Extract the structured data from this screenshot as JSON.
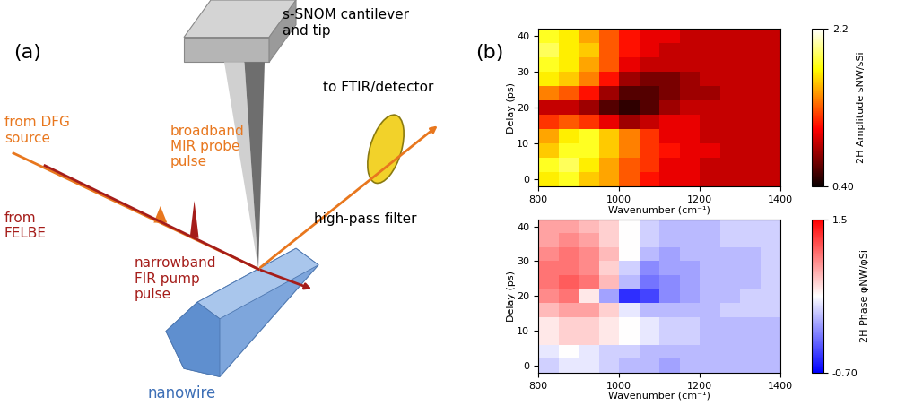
{
  "panel_labels": [
    "(a)",
    "(b)"
  ],
  "diagram": {
    "labels": {
      "cantilever": "s-SNOM cantilever\nand tip",
      "dfg": "from DFG\nsource",
      "probe": "broadband\nMIR probe\npulse",
      "felbe": "from\nFELBE",
      "pump": "narrowband\nFIR pump\npulse",
      "nanowire": "nanowire",
      "filter": "high-pass filter",
      "detector": "to FTIR/detector"
    }
  },
  "chart_data": [
    {
      "type": "heatmap",
      "xlabel": "Wavenumber (cm⁻¹)",
      "ylabel": "Delay (ps)",
      "xlim": [
        800,
        1400
      ],
      "xticks": [
        800,
        1000,
        1200,
        1400
      ],
      "ylim": [
        -2,
        42
      ],
      "yticks": [
        0,
        10,
        20,
        30,
        40
      ],
      "x_edges": [
        800,
        850,
        900,
        950,
        1000,
        1050,
        1100,
        1150,
        1200,
        1250,
        1300,
        1350,
        1400
      ],
      "y_edges": [
        -2,
        2,
        6,
        10,
        14,
        18,
        22,
        26,
        30,
        34,
        38,
        42
      ],
      "cells": [
        [
          1.7,
          1.8,
          1.6,
          1.5,
          1.3,
          1.1,
          1.0,
          1.0,
          0.9,
          0.9,
          0.9,
          0.9
        ],
        [
          1.8,
          1.9,
          1.7,
          1.5,
          1.3,
          1.2,
          1.0,
          1.0,
          0.9,
          0.9,
          0.9,
          0.9
        ],
        [
          1.6,
          1.8,
          1.8,
          1.6,
          1.4,
          1.2,
          1.1,
          1.0,
          1.0,
          0.9,
          0.9,
          0.9
        ],
        [
          1.5,
          1.7,
          1.8,
          1.6,
          1.4,
          1.2,
          1.0,
          1.0,
          0.9,
          0.9,
          0.9,
          0.9
        ],
        [
          1.2,
          1.3,
          1.2,
          1.0,
          0.8,
          0.9,
          1.0,
          1.0,
          0.9,
          0.9,
          0.9,
          0.9
        ],
        [
          0.9,
          0.9,
          0.8,
          0.6,
          0.5,
          0.6,
          0.8,
          0.9,
          0.9,
          0.9,
          0.9,
          0.9
        ],
        [
          1.4,
          1.3,
          1.1,
          0.8,
          0.6,
          0.6,
          0.7,
          0.8,
          0.8,
          0.9,
          0.9,
          0.9
        ],
        [
          1.7,
          1.6,
          1.4,
          1.1,
          0.8,
          0.7,
          0.7,
          0.8,
          0.9,
          0.9,
          0.9,
          0.9
        ],
        [
          1.8,
          1.7,
          1.5,
          1.3,
          1.0,
          0.9,
          0.9,
          0.9,
          0.9,
          0.9,
          0.9,
          0.9
        ],
        [
          1.9,
          1.7,
          1.6,
          1.3,
          1.1,
          1.0,
          0.9,
          0.9,
          0.9,
          0.9,
          0.9,
          0.9
        ],
        [
          1.8,
          1.7,
          1.5,
          1.3,
          1.1,
          1.0,
          1.0,
          0.9,
          0.9,
          0.9,
          0.9,
          0.9
        ]
      ],
      "colorbar": {
        "label": "2H Amplitude sNW/sSi",
        "range": [
          0.4,
          2.2
        ],
        "ticks": [
          {
            "value": 0.4,
            "label": "0.40"
          },
          2.2
        ]
      }
    },
    {
      "type": "heatmap",
      "xlabel": "Wavenumber (cm⁻¹)",
      "ylabel": "Delay (ps)",
      "xlim": [
        800,
        1400
      ],
      "xticks": [
        800,
        1000,
        1200,
        1400
      ],
      "ylim": [
        -2,
        42
      ],
      "yticks": [
        0,
        10,
        20,
        30,
        40
      ],
      "x_edges": [
        800,
        850,
        900,
        950,
        1000,
        1050,
        1100,
        1150,
        1200,
        1250,
        1300,
        1350,
        1400
      ],
      "y_edges": [
        -2,
        2,
        6,
        10,
        14,
        18,
        22,
        26,
        30,
        34,
        38,
        42
      ],
      "cells": [
        [
          0.2,
          0.3,
          0.3,
          0.2,
          0.1,
          0.1,
          0.0,
          0.1,
          0.1,
          0.1,
          0.1,
          0.1
        ],
        [
          0.3,
          0.4,
          0.3,
          0.2,
          0.2,
          0.1,
          0.1,
          0.1,
          0.1,
          0.1,
          0.1,
          0.1
        ],
        [
          0.5,
          0.6,
          0.6,
          0.5,
          0.4,
          0.3,
          0.2,
          0.2,
          0.1,
          0.1,
          0.1,
          0.1
        ],
        [
          0.5,
          0.6,
          0.6,
          0.5,
          0.4,
          0.3,
          0.2,
          0.2,
          0.1,
          0.1,
          0.1,
          0.1
        ],
        [
          0.7,
          0.8,
          0.8,
          0.6,
          0.3,
          0.1,
          0.1,
          0.1,
          0.1,
          0.2,
          0.2,
          0.2
        ],
        [
          0.9,
          1.0,
          0.5,
          0.0,
          -0.5,
          -0.4,
          -0.1,
          0.0,
          0.1,
          0.1,
          0.2,
          0.2
        ],
        [
          1.0,
          1.1,
          1.0,
          0.7,
          0.1,
          -0.2,
          -0.1,
          0.0,
          0.1,
          0.1,
          0.1,
          0.2
        ],
        [
          1.0,
          1.0,
          0.9,
          0.6,
          0.2,
          -0.1,
          0.0,
          0.0,
          0.1,
          0.1,
          0.1,
          0.2
        ],
        [
          0.9,
          1.0,
          0.9,
          0.7,
          0.4,
          0.1,
          0.0,
          0.1,
          0.1,
          0.1,
          0.1,
          0.2
        ],
        [
          0.8,
          0.9,
          0.8,
          0.6,
          0.4,
          0.2,
          0.1,
          0.1,
          0.1,
          0.2,
          0.2,
          0.2
        ],
        [
          0.8,
          0.8,
          0.7,
          0.6,
          0.4,
          0.2,
          0.1,
          0.1,
          0.1,
          0.2,
          0.2,
          0.2
        ]
      ],
      "colorbar": {
        "label": "2H Phase φNW/φSi",
        "range": [
          -0.7,
          1.5
        ],
        "ticks": [
          {
            "value": -0.7,
            "label": "-0.70"
          },
          1.5
        ]
      }
    }
  ]
}
